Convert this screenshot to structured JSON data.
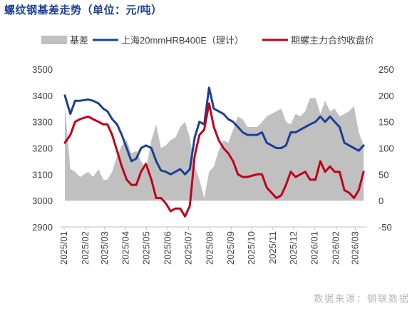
{
  "page": {
    "title": "螺纹钢基差走势（单位：元/吨）",
    "source": "数据来源：钢联数据"
  },
  "colors": {
    "basis": "#c0c0c0",
    "spot": "#1b3f95",
    "futures": "#c0001a",
    "title": "#1b3f95"
  },
  "chart_data": {
    "type": "line",
    "title": "螺纹钢基差走势（单位：元/吨）",
    "legend_position": "top",
    "grid": false,
    "x_ticks": [
      "2025/01",
      "2025/02",
      "2025/03",
      "2025/04",
      "2025/05",
      "2025/06",
      "2025/07",
      "2025/08",
      "2025/09",
      "2025/10",
      "2025/11",
      "2025/12",
      "2026/01",
      "2026/02",
      "2026/03"
    ],
    "y_left": {
      "min": 2900,
      "max": 3500,
      "ticks": [
        2900,
        3000,
        3100,
        3200,
        3300,
        3400,
        3500
      ]
    },
    "y_right": {
      "min": -50,
      "max": 250,
      "ticks": [
        -50,
        0,
        50,
        100,
        150,
        200,
        250
      ]
    },
    "x": [
      "2025-01-02",
      "2025-01-10",
      "2025-01-17",
      "2025-01-24",
      "2025-02-05",
      "2025-02-12",
      "2025-02-20",
      "2025-02-27",
      "2025-03-05",
      "2025-03-12",
      "2025-03-19",
      "2025-03-26",
      "2025-04-02",
      "2025-04-09",
      "2025-04-16",
      "2025-04-23",
      "2025-04-30",
      "2025-05-08",
      "2025-05-15",
      "2025-05-22",
      "2025-05-29",
      "2025-06-05",
      "2025-06-12",
      "2025-06-19",
      "2025-06-26",
      "2025-07-03",
      "2025-07-10",
      "2025-07-17",
      "2025-07-24",
      "2025-07-31",
      "2025-08-07",
      "2025-08-14",
      "2025-08-21",
      "2025-08-28",
      "2025-09-04",
      "2025-09-11",
      "2025-09-18",
      "2025-09-25",
      "2025-10-09",
      "2025-10-16",
      "2025-10-23",
      "2025-10-30",
      "2025-11-06",
      "2025-11-13",
      "2025-11-20",
      "2025-11-27",
      "2025-12-04",
      "2025-12-11",
      "2025-12-18",
      "2025-12-25",
      "2026-01-02",
      "2026-01-09",
      "2026-01-16",
      "2026-01-23",
      "2026-01-30",
      "2026-02-06",
      "2026-02-13",
      "2026-02-20",
      "2026-02-27",
      "2026-03-06",
      "2026-03-13"
    ],
    "series": [
      {
        "name": "基差",
        "axis": "right",
        "style": "area",
        "values": [
          180,
          60,
          55,
          45,
          55,
          45,
          60,
          40,
          40,
          55,
          85,
          105,
          115,
          90,
          95,
          75,
          60,
          115,
          145,
          100,
          105,
          115,
          120,
          140,
          150,
          120,
          65,
          40,
          5,
          55,
          65,
          95,
          115,
          110,
          135,
          160,
          155,
          140,
          140,
          150,
          160,
          165,
          170,
          175,
          150,
          145,
          165,
          160,
          170,
          195,
          195,
          165,
          190,
          170,
          175,
          160,
          165,
          170,
          180,
          130,
          105
        ]
      },
      {
        "name": "上海20mmHRB400E（理计）",
        "axis": "left",
        "style": "line",
        "values": [
          3400,
          3330,
          3380,
          3380,
          3385,
          3380,
          3370,
          3350,
          3340,
          3310,
          3290,
          3250,
          3200,
          3150,
          3160,
          3200,
          3210,
          3200,
          3150,
          3115,
          3110,
          3100,
          3110,
          3120,
          3100,
          3120,
          3240,
          3300,
          3290,
          3430,
          3350,
          3340,
          3330,
          3310,
          3300,
          3280,
          3260,
          3250,
          3250,
          3260,
          3220,
          3210,
          3200,
          3200,
          3210,
          3260,
          3260,
          3270,
          3280,
          3290,
          3300,
          3320,
          3300,
          3320,
          3300,
          3280,
          3220,
          3210,
          3200,
          3190,
          3210
        ]
      },
      {
        "name": "期螺主力合约收盘价",
        "axis": "left",
        "style": "line",
        "values": [
          3220,
          3250,
          3300,
          3310,
          3320,
          3310,
          3300,
          3290,
          3290,
          3250,
          3190,
          3130,
          3080,
          3060,
          3060,
          3110,
          3140,
          3080,
          3010,
          3010,
          2990,
          2960,
          2970,
          2970,
          2940,
          2980,
          3170,
          3250,
          3270,
          3370,
          3280,
          3230,
          3200,
          3180,
          3150,
          3100,
          3090,
          3090,
          3100,
          3100,
          3050,
          3030,
          3010,
          3020,
          3060,
          3110,
          3090,
          3100,
          3110,
          3080,
          3080,
          3150,
          3110,
          3130,
          3110,
          3110,
          3040,
          3030,
          3010,
          3040,
          3110
        ]
      }
    ]
  }
}
